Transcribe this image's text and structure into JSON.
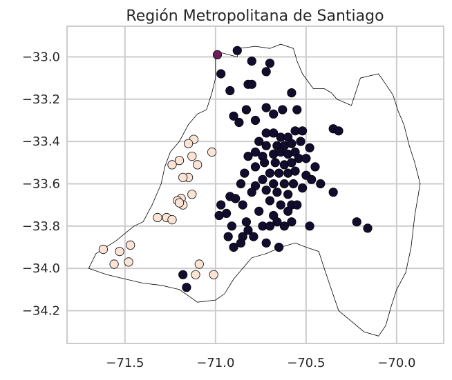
{
  "chart_data": {
    "type": "scatter",
    "title": "Región Metropolitana de Santiago",
    "xlabel": "",
    "ylabel": "",
    "xlim": [
      -71.82,
      -69.74
    ],
    "ylim": [
      -34.355,
      -32.855
    ],
    "grid": true,
    "x_ticks": [
      -71.5,
      -71.0,
      -70.5,
      -70.0
    ],
    "x_tick_labels": [
      "−71.5",
      "−71.0",
      "−70.5",
      "−70.0"
    ],
    "y_ticks": [
      -33.0,
      -33.2,
      -33.4,
      -33.6,
      -33.8,
      -34.0,
      -34.2
    ],
    "y_tick_labels": [
      "−33.0",
      "−33.2",
      "−33.4",
      "−33.6",
      "−33.8",
      "−34.0",
      "−34.2"
    ],
    "colors": {
      "dark": "#120d2e",
      "light": "#fbe4d6",
      "purple": "#6b1d5e",
      "boundary": "#000000",
      "grid": "#cccccc"
    },
    "boundary_outline": [
      [
        -71.0,
        -33.0
      ],
      [
        -70.97,
        -32.98
      ],
      [
        -70.88,
        -33.0
      ],
      [
        -70.87,
        -32.96
      ],
      [
        -70.78,
        -32.95
      ],
      [
        -70.7,
        -32.96
      ],
      [
        -70.64,
        -32.94
      ],
      [
        -70.57,
        -32.96
      ],
      [
        -70.55,
        -33.02
      ],
      [
        -70.52,
        -33.08
      ],
      [
        -70.46,
        -33.15
      ],
      [
        -70.4,
        -33.15
      ],
      [
        -70.36,
        -33.17
      ],
      [
        -70.33,
        -33.2
      ],
      [
        -70.25,
        -33.23
      ],
      [
        -70.2,
        -33.1
      ],
      [
        -70.1,
        -33.08
      ],
      [
        -70.06,
        -33.13
      ],
      [
        -70.02,
        -33.18
      ],
      [
        -69.99,
        -33.26
      ],
      [
        -69.96,
        -33.32
      ],
      [
        -69.93,
        -33.42
      ],
      [
        -69.9,
        -33.5
      ],
      [
        -69.87,
        -33.6
      ],
      [
        -69.9,
        -33.75
      ],
      [
        -69.92,
        -33.9
      ],
      [
        -69.95,
        -34.02
      ],
      [
        -70.0,
        -34.1
      ],
      [
        -70.03,
        -34.18
      ],
      [
        -70.06,
        -34.27
      ],
      [
        -70.1,
        -34.32
      ],
      [
        -70.18,
        -34.3
      ],
      [
        -70.25,
        -34.25
      ],
      [
        -70.32,
        -34.2
      ],
      [
        -70.36,
        -34.1
      ],
      [
        -70.4,
        -34.0
      ],
      [
        -70.43,
        -33.92
      ],
      [
        -70.5,
        -33.9
      ],
      [
        -70.56,
        -33.88
      ],
      [
        -70.64,
        -33.9
      ],
      [
        -70.72,
        -33.93
      ],
      [
        -70.8,
        -33.95
      ],
      [
        -70.85,
        -34.0
      ],
      [
        -70.9,
        -34.05
      ],
      [
        -70.95,
        -34.12
      ],
      [
        -71.0,
        -34.15
      ],
      [
        -71.1,
        -34.16
      ],
      [
        -71.2,
        -34.1
      ],
      [
        -71.3,
        -34.08
      ],
      [
        -71.4,
        -34.07
      ],
      [
        -71.5,
        -34.05
      ],
      [
        -71.6,
        -34.03
      ],
      [
        -71.7,
        -34.0
      ],
      [
        -71.66,
        -33.93
      ],
      [
        -71.55,
        -33.87
      ],
      [
        -71.45,
        -33.8
      ],
      [
        -71.4,
        -33.78
      ],
      [
        -71.35,
        -33.7
      ],
      [
        -71.3,
        -33.6
      ],
      [
        -71.28,
        -33.52
      ],
      [
        -71.25,
        -33.45
      ],
      [
        -71.2,
        -33.4
      ],
      [
        -71.15,
        -33.32
      ],
      [
        -71.1,
        -33.27
      ],
      [
        -71.05,
        -33.25
      ],
      [
        -71.02,
        -33.17
      ],
      [
        -71.0,
        -33.1
      ],
      [
        -71.0,
        -33.0
      ]
    ],
    "series": [
      {
        "color_key": "dark",
        "points": [
          [
            -70.88,
            -32.97
          ],
          [
            -70.8,
            -33.02
          ],
          [
            -70.97,
            -33.08
          ],
          [
            -70.72,
            -33.07
          ],
          [
            -70.7,
            -33.03
          ],
          [
            -70.92,
            -33.16
          ],
          [
            -70.82,
            -33.13
          ],
          [
            -70.8,
            -33.13
          ],
          [
            -70.58,
            -33.17
          ],
          [
            -70.83,
            -33.25
          ],
          [
            -70.72,
            -33.24
          ],
          [
            -70.9,
            -33.28
          ],
          [
            -70.68,
            -33.27
          ],
          [
            -70.87,
            -33.31
          ],
          [
            -70.78,
            -33.3
          ],
          [
            -70.63,
            -33.25
          ],
          [
            -70.55,
            -33.25
          ],
          [
            -70.72,
            -33.36
          ],
          [
            -70.68,
            -33.36
          ],
          [
            -70.64,
            -33.38
          ],
          [
            -70.6,
            -33.38
          ],
          [
            -70.56,
            -33.35
          ],
          [
            -70.52,
            -33.35
          ],
          [
            -70.76,
            -33.4
          ],
          [
            -70.72,
            -33.42
          ],
          [
            -70.66,
            -33.42
          ],
          [
            -70.62,
            -33.42
          ],
          [
            -70.58,
            -33.41
          ],
          [
            -70.53,
            -33.4
          ],
          [
            -70.78,
            -33.45
          ],
          [
            -70.74,
            -33.47
          ],
          [
            -70.68,
            -33.46
          ],
          [
            -70.64,
            -33.45
          ],
          [
            -70.6,
            -33.46
          ],
          [
            -70.56,
            -33.45
          ],
          [
            -70.82,
            -33.47
          ],
          [
            -70.73,
            -33.5
          ],
          [
            -70.67,
            -33.5
          ],
          [
            -70.62,
            -33.51
          ],
          [
            -70.58,
            -33.5
          ],
          [
            -70.54,
            -33.48
          ],
          [
            -70.78,
            -33.52
          ],
          [
            -70.7,
            -33.55
          ],
          [
            -70.65,
            -33.55
          ],
          [
            -70.6,
            -33.55
          ],
          [
            -70.56,
            -33.54
          ],
          [
            -70.84,
            -33.55
          ],
          [
            -70.74,
            -33.58
          ],
          [
            -70.68,
            -33.6
          ],
          [
            -70.62,
            -33.6
          ],
          [
            -70.57,
            -33.6
          ],
          [
            -70.78,
            -33.61
          ],
          [
            -70.72,
            -33.63
          ],
          [
            -70.66,
            -33.64
          ],
          [
            -70.6,
            -33.65
          ],
          [
            -70.86,
            -33.6
          ],
          [
            -70.8,
            -33.64
          ],
          [
            -70.7,
            -33.68
          ],
          [
            -70.64,
            -33.7
          ],
          [
            -70.58,
            -33.7
          ],
          [
            -70.92,
            -33.66
          ],
          [
            -70.85,
            -33.7
          ],
          [
            -70.76,
            -33.73
          ],
          [
            -70.68,
            -33.75
          ],
          [
            -70.97,
            -33.7
          ],
          [
            -70.94,
            -33.74
          ],
          [
            -70.89,
            -33.67
          ],
          [
            -70.83,
            -33.78
          ],
          [
            -70.82,
            -33.82
          ],
          [
            -70.74,
            -33.8
          ],
          [
            -70.66,
            -33.78
          ],
          [
            -70.98,
            -33.75
          ],
          [
            -70.91,
            -33.8
          ],
          [
            -70.79,
            -33.85
          ],
          [
            -70.72,
            -33.88
          ],
          [
            -70.65,
            -33.9
          ],
          [
            -70.93,
            -33.85
          ],
          [
            -70.85,
            -33.85
          ],
          [
            -70.86,
            -33.88
          ],
          [
            -70.9,
            -33.9
          ],
          [
            -70.42,
            -33.6
          ],
          [
            -70.5,
            -33.56
          ],
          [
            -70.45,
            -33.52
          ],
          [
            -70.5,
            -33.48
          ],
          [
            -70.48,
            -33.43
          ],
          [
            -70.35,
            -33.34
          ],
          [
            -70.32,
            -33.35
          ],
          [
            -70.35,
            -33.64
          ],
          [
            -70.22,
            -33.78
          ],
          [
            -70.16,
            -33.81
          ],
          [
            -70.48,
            -33.8
          ],
          [
            -70.58,
            -33.78
          ],
          [
            -70.62,
            -33.8
          ],
          [
            -70.7,
            -33.8
          ],
          [
            -71.18,
            -34.03
          ],
          [
            -71.16,
            -34.09
          ],
          [
            -70.55,
            -33.7
          ],
          [
            -70.6,
            -33.73
          ],
          [
            -70.52,
            -33.62
          ],
          [
            -70.47,
            -33.58
          ]
        ]
      },
      {
        "color_key": "light",
        "points": [
          [
            -71.12,
            -33.39
          ],
          [
            -71.15,
            -33.41
          ],
          [
            -71.02,
            -33.45
          ],
          [
            -71.13,
            -33.47
          ],
          [
            -71.2,
            -33.49
          ],
          [
            -71.24,
            -33.51
          ],
          [
            -71.1,
            -33.51
          ],
          [
            -71.15,
            -33.57
          ],
          [
            -71.18,
            -33.57
          ],
          [
            -71.13,
            -33.65
          ],
          [
            -71.19,
            -33.67
          ],
          [
            -71.21,
            -33.68
          ],
          [
            -71.18,
            -33.7
          ],
          [
            -71.2,
            -33.69
          ],
          [
            -71.27,
            -33.76
          ],
          [
            -71.32,
            -33.76
          ],
          [
            -71.24,
            -33.77
          ],
          [
            -71.62,
            -33.91
          ],
          [
            -71.53,
            -33.92
          ],
          [
            -71.47,
            -33.89
          ],
          [
            -71.56,
            -33.98
          ],
          [
            -71.48,
            -33.97
          ],
          [
            -71.09,
            -33.98
          ],
          [
            -71.11,
            -34.03
          ],
          [
            -71.01,
            -34.03
          ]
        ]
      },
      {
        "color_key": "purple",
        "points": [
          [
            -70.99,
            -32.99
          ]
        ]
      }
    ]
  }
}
